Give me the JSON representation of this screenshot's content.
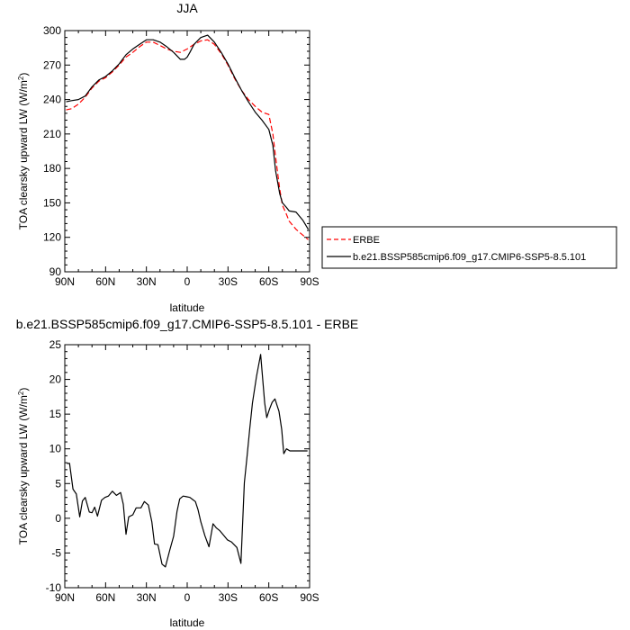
{
  "chart_data": [
    {
      "type": "line",
      "title": "JJA",
      "xlabel": "latitude",
      "ylabel_main": "TOA clearsky upward LW (W/m",
      "ylabel_sup": "2",
      "ylabel_close": ")",
      "xlim": [
        90,
        -90
      ],
      "ylim": [
        90,
        300
      ],
      "x_ticks": [
        90,
        60,
        30,
        0,
        -30,
        -60,
        -90
      ],
      "x_tick_labels": [
        "90N",
        "60N",
        "30N",
        "0",
        "30S",
        "60S",
        "90S"
      ],
      "y_ticks": [
        90,
        120,
        150,
        180,
        210,
        240,
        270,
        300
      ],
      "y_tick_labels": [
        "90",
        "120",
        "150",
        "180",
        "210",
        "240",
        "270",
        "300"
      ],
      "legend": "outside-right",
      "series": [
        {
          "name": "ERBE",
          "color": "#ff0000",
          "style": "dashed",
          "x": [
            89,
            85,
            80,
            75,
            70,
            65,
            60,
            55,
            50,
            45,
            40,
            35,
            30,
            25,
            20,
            15,
            10,
            5,
            0,
            -5,
            -10,
            -15,
            -20,
            -25,
            -30,
            -35,
            -40,
            -45,
            -50,
            -55,
            -60,
            -63,
            -65,
            -68,
            -70,
            -73,
            -75,
            -80,
            -85,
            -89
          ],
          "y": [
            231,
            232,
            236,
            242,
            250,
            256,
            259,
            264,
            270,
            277,
            281,
            286,
            290,
            290,
            287,
            284,
            282,
            281,
            284,
            288,
            291,
            292,
            288,
            280,
            270,
            258,
            248,
            240,
            234,
            229,
            227,
            210,
            190,
            162,
            148,
            140,
            134,
            127,
            122,
            118
          ]
        },
        {
          "name": "b.e21.BSSP585cmip6.f09_g17.CMIP6-SSP5-8.5.101",
          "color": "#000000",
          "style": "solid",
          "x": [
            89,
            85,
            80,
            75,
            70,
            65,
            60,
            55,
            50,
            45,
            40,
            35,
            30,
            25,
            20,
            15,
            10,
            5,
            2,
            0,
            -2,
            -5,
            -10,
            -15,
            -20,
            -25,
            -30,
            -35,
            -40,
            -45,
            -50,
            -55,
            -60,
            -63,
            -65,
            -68,
            -70,
            -73,
            -75,
            -80,
            -85,
            -89
          ],
          "y": [
            238,
            239,
            240,
            243,
            251,
            257,
            260,
            265,
            271,
            279,
            284,
            288,
            292,
            292,
            290,
            286,
            281,
            275,
            275,
            277,
            281,
            288,
            294,
            296,
            290,
            281,
            271,
            259,
            248,
            238,
            229,
            222,
            214,
            200,
            178,
            158,
            150,
            146,
            143,
            142,
            135,
            127
          ]
        }
      ]
    },
    {
      "type": "line",
      "title": "b.e21.BSSP585cmip6.f09_g17.CMIP6-SSP5-8.5.101 - ERBE",
      "xlabel": "latitude",
      "ylabel_main": "TOA clearsky upward LW (W/m",
      "ylabel_sup": "2",
      "ylabel_close": ")",
      "xlim": [
        90,
        -90
      ],
      "ylim": [
        -10,
        25
      ],
      "x_ticks": [
        90,
        60,
        30,
        0,
        -30,
        -60,
        -90
      ],
      "x_tick_labels": [
        "90N",
        "60N",
        "30N",
        "0",
        "30S",
        "60S",
        "90S"
      ],
      "y_ticks": [
        -10,
        -5,
        0,
        5,
        10,
        15,
        20,
        25
      ],
      "y_tick_labels": [
        "-10",
        "-5",
        "0",
        "5",
        "10",
        "15",
        "20",
        "25"
      ],
      "series": [
        {
          "name": "",
          "color": "#000000",
          "style": "solid",
          "x": [
            88.5,
            86.5,
            84,
            81.5,
            79,
            77,
            75,
            72,
            70,
            68,
            66,
            63,
            60.5,
            58,
            55,
            52,
            49,
            47,
            45,
            43,
            40,
            37.5,
            34,
            31.5,
            28.5,
            26,
            24,
            21.5,
            18.5,
            16,
            13,
            10,
            7.5,
            5.5,
            3,
            0.5,
            -2,
            -4,
            -6,
            -8,
            -10,
            -13,
            -16,
            -19,
            -21.5,
            -24,
            -27,
            -29.5,
            -32.5,
            -34,
            -36.5,
            -39.5,
            -42,
            -44,
            -46,
            -48,
            -51,
            -54,
            -57,
            -58.5,
            -60.5,
            -62.5,
            -64.5,
            -66,
            -67.5,
            -69.5,
            -71,
            -73,
            -75.5,
            -78,
            -80,
            -81.5,
            -83.5,
            -85,
            -87,
            -88.5
          ],
          "y": [
            7.9,
            7.9,
            4.2,
            3.5,
            0.2,
            2.5,
            3.0,
            0.9,
            0.8,
            1.6,
            0.3,
            2.6,
            3.0,
            3.2,
            3.9,
            3.3,
            3.7,
            2.0,
            -2.3,
            0.2,
            0.5,
            1.5,
            1.5,
            2.4,
            1.9,
            -0.5,
            -3.7,
            -3.8,
            -6.6,
            -7.0,
            -4.7,
            -2.6,
            1.0,
            2.8,
            3.2,
            3.1,
            3.0,
            2.7,
            2.4,
            1.2,
            -0.5,
            -2.5,
            -4.1,
            -0.8,
            -1.4,
            -1.8,
            -2.5,
            -3.1,
            -3.4,
            -3.7,
            -4.2,
            -6.5,
            5.1,
            8.9,
            12.9,
            16.6,
            20.5,
            23.6,
            16.6,
            14.5,
            15.7,
            16.7,
            17.2,
            16.3,
            15.4,
            12.8,
            9.3,
            10.0,
            9.7,
            9.7,
            9.7,
            9.7,
            9.7,
            9.7,
            9.7,
            9.7
          ]
        }
      ]
    }
  ]
}
